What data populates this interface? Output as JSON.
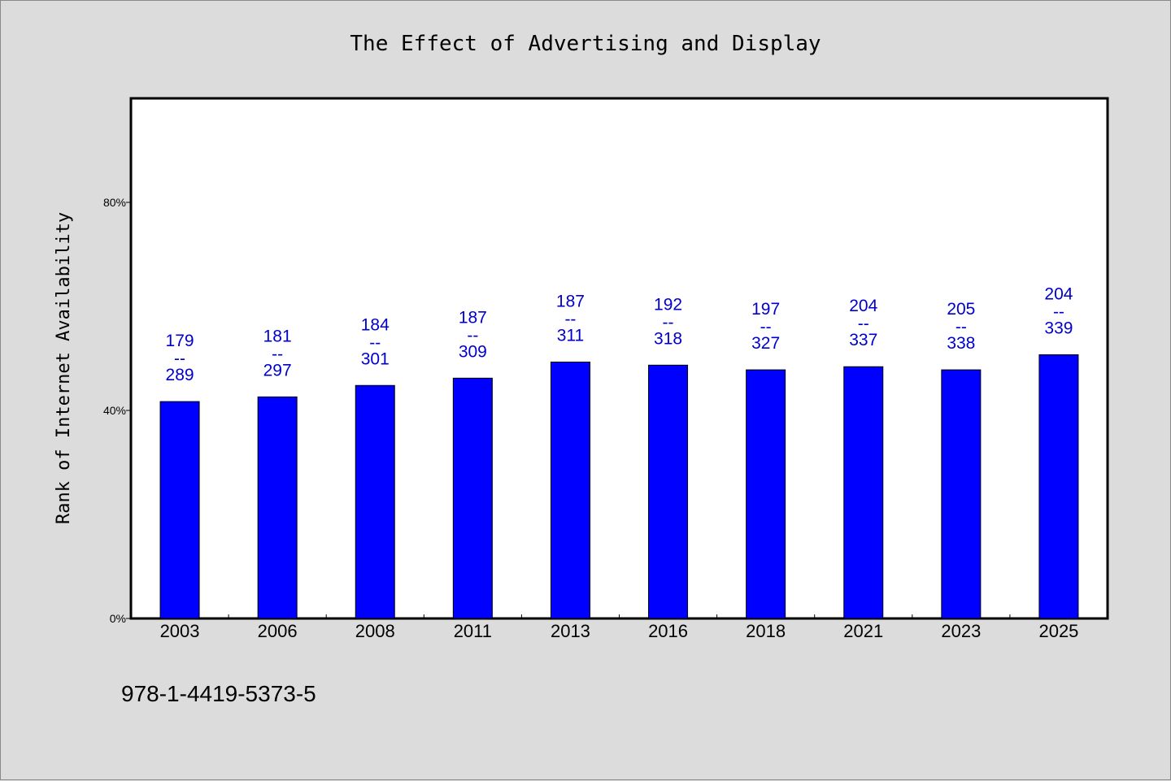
{
  "chart_data": {
    "type": "bar",
    "title": "The Effect of Advertising and Display",
    "ylabel": "Rank of Internet Availability",
    "xlabel": "",
    "categories": [
      "2003",
      "2006",
      "2008",
      "2011",
      "2013",
      "2016",
      "2018",
      "2021",
      "2023",
      "2025"
    ],
    "values": [
      41.7,
      42.6,
      44.8,
      46.2,
      49.3,
      48.7,
      47.8,
      48.4,
      47.8,
      50.7
    ],
    "data_labels": [
      {
        "top": "179",
        "sep": "--",
        "bottom": "289"
      },
      {
        "top": "181",
        "sep": "--",
        "bottom": "297"
      },
      {
        "top": "184",
        "sep": "--",
        "bottom": "301"
      },
      {
        "top": "187",
        "sep": "--",
        "bottom": "309"
      },
      {
        "top": "187",
        "sep": "--",
        "bottom": "311"
      },
      {
        "top": "192",
        "sep": "--",
        "bottom": "318"
      },
      {
        "top": "197",
        "sep": "--",
        "bottom": "327"
      },
      {
        "top": "204",
        "sep": "--",
        "bottom": "337"
      },
      {
        "top": "205",
        "sep": "--",
        "bottom": "338"
      },
      {
        "top": "204",
        "sep": "--",
        "bottom": "339"
      }
    ],
    "yticks": [
      {
        "value": 0,
        "label": "0%"
      },
      {
        "value": 40,
        "label": "40%"
      },
      {
        "value": 80,
        "label": "80%"
      }
    ],
    "ylim": [
      0,
      100
    ],
    "grid": false,
    "colors": {
      "bar": "#0000ff",
      "label": "#0000cc",
      "background": "#dcdcdc",
      "plot": "#ffffff"
    }
  },
  "footer": {
    "isbn": "978-1-4419-5373-5"
  }
}
